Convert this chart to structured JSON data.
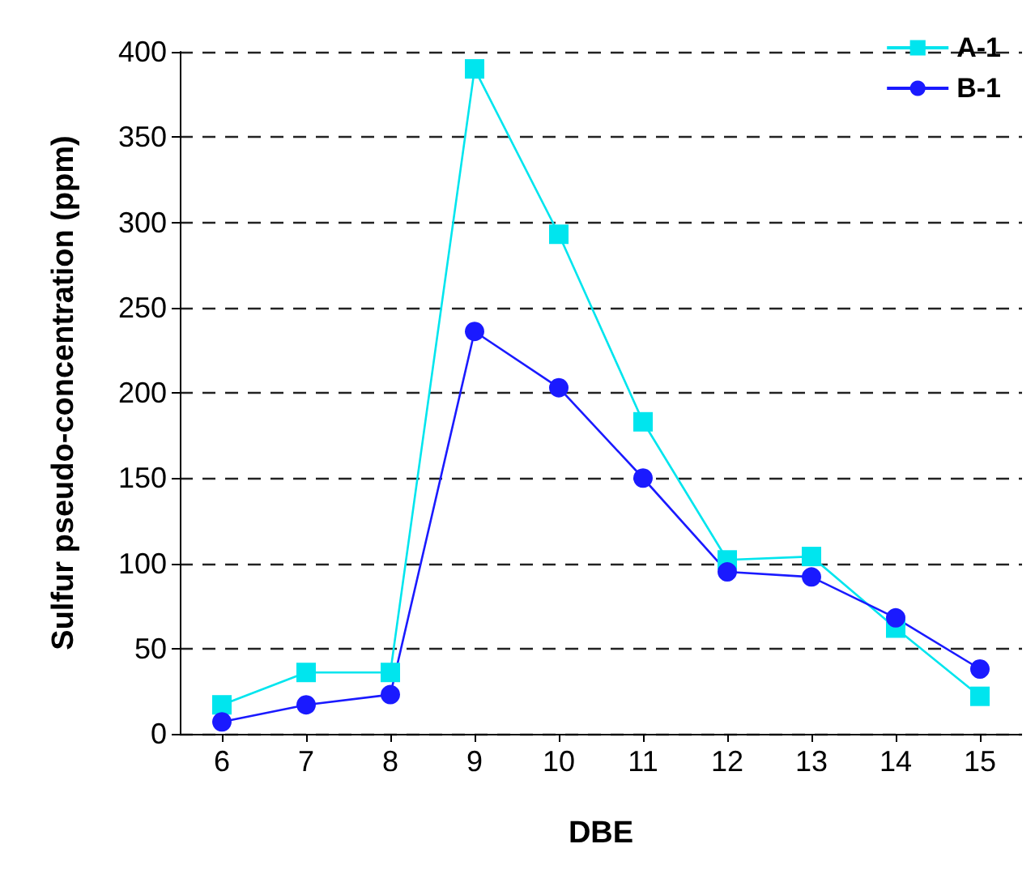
{
  "chart_data": {
    "type": "line",
    "xlabel": "DBE",
    "ylabel": "Sulfur pseudo-concentration (ppm)",
    "x": [
      6,
      7,
      8,
      9,
      10,
      11,
      12,
      13,
      14,
      15
    ],
    "series": [
      {
        "name": "A-1",
        "color": "#00e5ee",
        "marker": "square",
        "values": [
          17,
          36,
          36,
          390,
          293,
          183,
          102,
          104,
          62,
          22
        ]
      },
      {
        "name": "B-1",
        "color": "#1a1aff",
        "marker": "circle",
        "values": [
          7,
          17,
          23,
          236,
          203,
          150,
          95,
          92,
          68,
          38
        ]
      }
    ],
    "xlim": [
      5.5,
      15.5
    ],
    "xticks": [
      6,
      7,
      8,
      9,
      10,
      11,
      12,
      13,
      14,
      15
    ],
    "ylim": [
      0,
      400
    ],
    "yticks": [
      0,
      50,
      100,
      150,
      200,
      250,
      300,
      350,
      400
    ],
    "grid": "y",
    "legend": "top right",
    "line_style": "solid"
  }
}
